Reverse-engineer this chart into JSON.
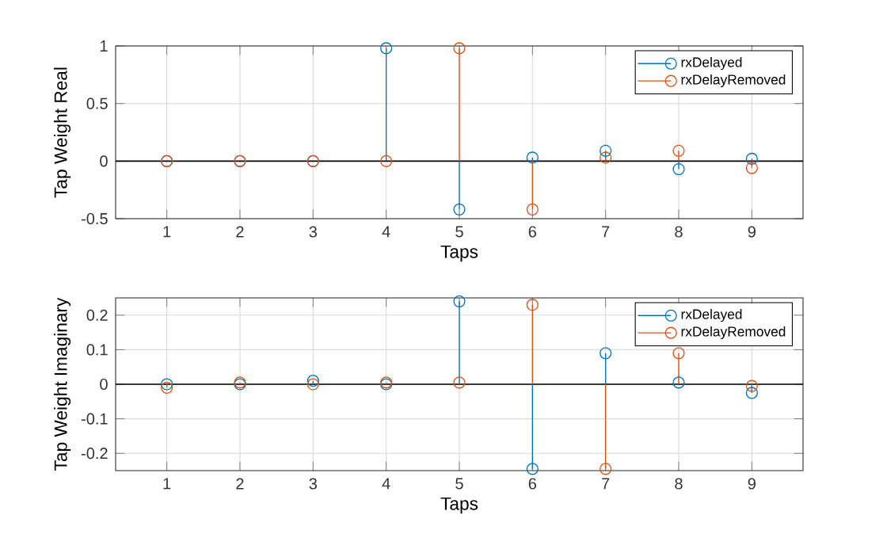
{
  "chart_data": [
    {
      "type": "lollipop",
      "xlabel": "Taps",
      "ylabel": "Tap Weight Real",
      "x": [
        1,
        2,
        3,
        4,
        5,
        6,
        7,
        8,
        9
      ],
      "series": [
        {
          "name": "rxDelayed",
          "color": "#0072bd",
          "values": [
            0,
            0,
            0,
            0.98,
            -0.42,
            0.03,
            0.09,
            -0.07,
            0.02
          ]
        },
        {
          "name": "rxDelayRemoved",
          "color": "#d95319",
          "values": [
            0,
            0,
            0,
            0,
            0.98,
            -0.42,
            0.03,
            0.09,
            -0.06
          ]
        }
      ],
      "xlim": [
        0.3,
        9.7
      ],
      "ylim": [
        -0.5,
        1
      ],
      "xticks": [
        1,
        2,
        3,
        4,
        5,
        6,
        7,
        8,
        9
      ],
      "yticks": [
        -0.5,
        0,
        0.5,
        1
      ],
      "ref_lines": [
        {
          "axis": "y",
          "value": 0,
          "color": "#000000"
        }
      ],
      "grid": true,
      "legend": "top right",
      "marker": "circle",
      "line_style": "solid"
    },
    {
      "type": "lollipop",
      "xlabel": "Taps",
      "ylabel": "Tap Weight Imaginary",
      "x": [
        1,
        2,
        3,
        4,
        5,
        6,
        7,
        8,
        9
      ],
      "series": [
        {
          "name": "rxDelayed",
          "color": "#0072bd",
          "values": [
            0,
            0,
            0.01,
            0,
            0.24,
            -0.245,
            0.09,
            0.005,
            -0.025
          ]
        },
        {
          "name": "rxDelayRemoved",
          "color": "#d95319",
          "values": [
            -0.01,
            0.005,
            0,
            0.005,
            0.005,
            0.23,
            -0.245,
            0.09,
            -0.005
          ]
        }
      ],
      "xlim": [
        0.3,
        9.7
      ],
      "ylim": [
        -0.25,
        0.25
      ],
      "xticks": [
        1,
        2,
        3,
        4,
        5,
        6,
        7,
        8,
        9
      ],
      "yticks": [
        -0.2,
        -0.1,
        0,
        0.1,
        0.2
      ],
      "ref_lines": [
        {
          "axis": "y",
          "value": 0,
          "color": "#000000"
        }
      ],
      "grid": true,
      "legend": "top right",
      "marker": "circle",
      "line_style": "solid"
    }
  ]
}
